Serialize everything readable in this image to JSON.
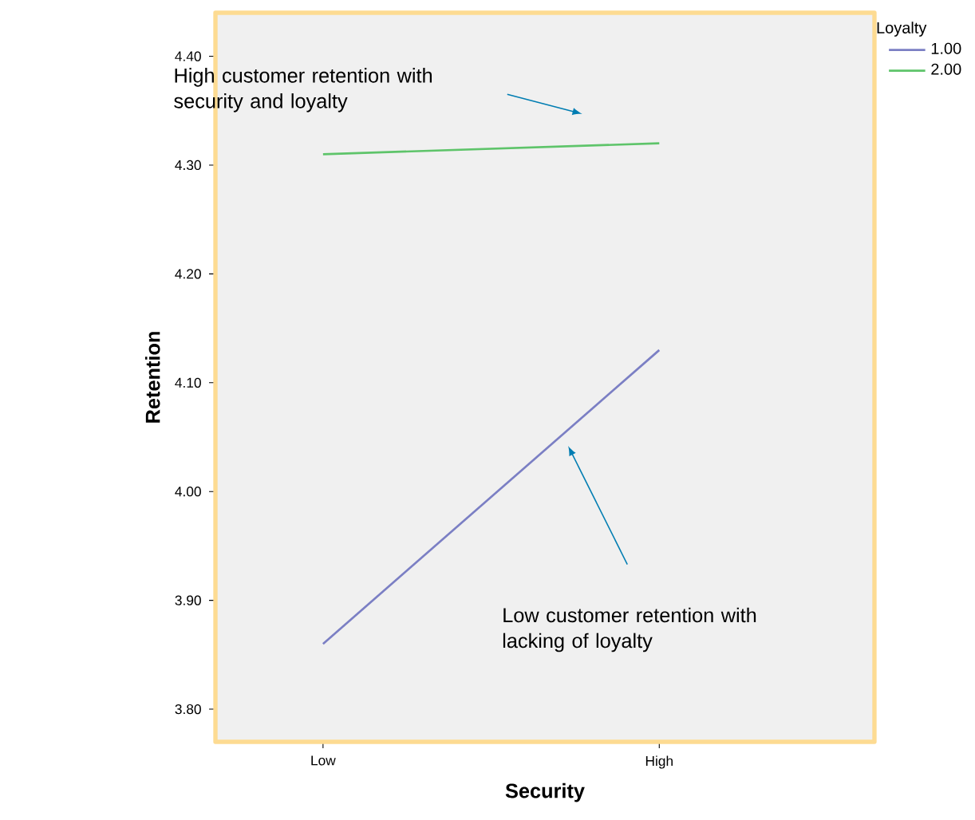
{
  "chart_data": {
    "type": "line",
    "xlabel": "Security",
    "ylabel": "Retention",
    "legend_title": "Loyalty",
    "legend": "top right",
    "grid": false,
    "marker": "none",
    "line_style": "solid",
    "categories": [
      "Low",
      "High"
    ],
    "ylim": [
      3.77,
      4.44
    ],
    "yticks": [
      {
        "value": 3.8,
        "label": "3.80"
      },
      {
        "value": 3.9,
        "label": "3.90"
      },
      {
        "value": 4.0,
        "label": "4.00"
      },
      {
        "value": 4.1,
        "label": "4.10"
      },
      {
        "value": 4.2,
        "label": "4.20"
      },
      {
        "value": 4.3,
        "label": "4.30"
      },
      {
        "value": 4.4,
        "label": "4.40"
      }
    ],
    "series": [
      {
        "name": "1.00",
        "color": "#7b7fc4",
        "values": [
          3.86,
          4.13
        ]
      },
      {
        "name": "2.00",
        "color": "#5ec46a",
        "values": [
          4.31,
          4.32
        ]
      }
    ],
    "annotations": [
      "High customer retention with security and loyalty",
      "Low customer retention with lacking of loyalty"
    ]
  }
}
